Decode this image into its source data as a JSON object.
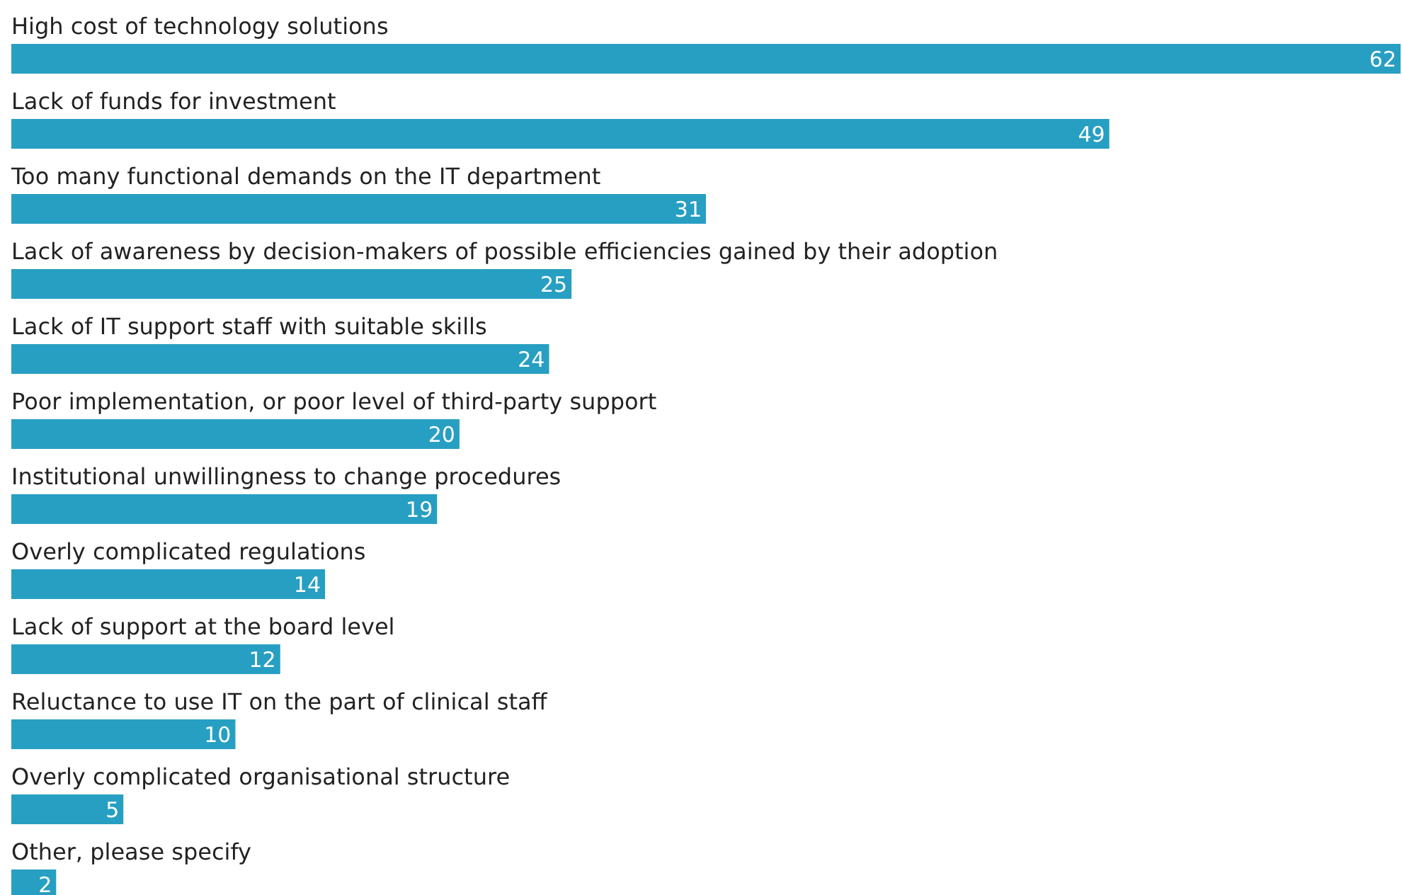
{
  "chart_data": {
    "type": "bar",
    "orientation": "horizontal",
    "data_labels": true,
    "color": "#279fc2",
    "categories": [
      "High cost of technology solutions",
      "Lack of funds for investment",
      "Too many functional demands on the IT department",
      "Lack of awareness by decision-makers of possible efficiencies gained by their adoption",
      "Lack of IT support staff with suitable skills",
      "Poor implementation, or poor level of third-party support",
      "Institutional unwillingness to change procedures",
      "Overly complicated regulations",
      "Lack of support at the board level",
      "Reluctance to use IT on the part of clinical staff",
      "Overly complicated organisational structure",
      "Other, please specify"
    ],
    "values": [
      62,
      49,
      31,
      25,
      24,
      20,
      19,
      14,
      12,
      10,
      5,
      2
    ]
  }
}
